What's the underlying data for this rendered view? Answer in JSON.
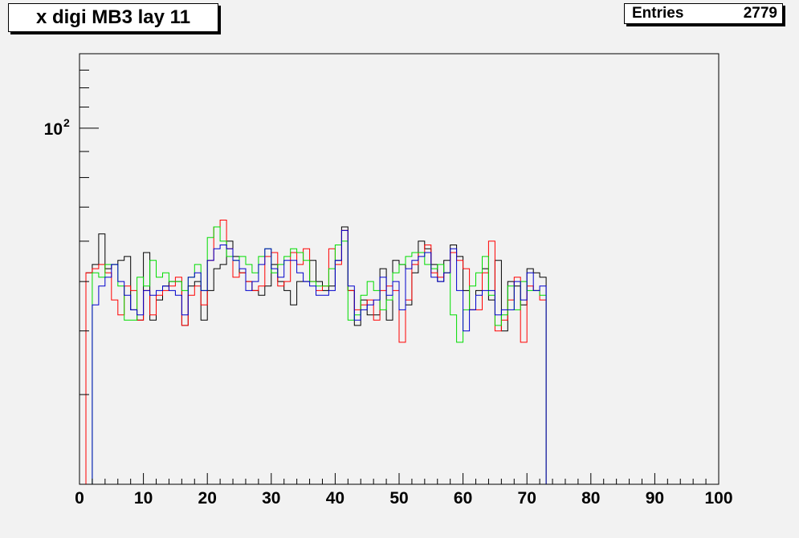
{
  "title": "x digi MB3 lay 11",
  "stats": {
    "label": "Entries",
    "value": "2779"
  },
  "chart_data": {
    "type": "histogram",
    "xlim": [
      0,
      100
    ],
    "ylim": [
      20,
      140
    ],
    "yscale": "log",
    "x_ticks": [
      "0",
      "10",
      "20",
      "30",
      "40",
      "50",
      "60",
      "70",
      "80",
      "90",
      "100"
    ],
    "y_tick_label": {
      "base": "10",
      "exponent": "2",
      "value": 100
    },
    "bin_width": 1,
    "x_start": 1,
    "grid": false,
    "series": [
      {
        "color": "#000000",
        "values": [
          52,
          54,
          62,
          53,
          54,
          55,
          56,
          44,
          42,
          57,
          42,
          46,
          49,
          50,
          50,
          41,
          49,
          50,
          42,
          48,
          53,
          54,
          60,
          56,
          52,
          50,
          48,
          47,
          49,
          54,
          50,
          48,
          45,
          50,
          50,
          55,
          50,
          48,
          49,
          55,
          64,
          48,
          41,
          46,
          43,
          43,
          53,
          42,
          55,
          54,
          45,
          52,
          60,
          58,
          54,
          50,
          55,
          59,
          56,
          48,
          44,
          48,
          53,
          46,
          55,
          40,
          50,
          49,
          45,
          53,
          52,
          51
        ]
      },
      {
        "color": "#ff0000",
        "values": [
          52,
          53,
          54,
          52,
          46,
          43,
          49,
          48,
          42,
          48,
          43,
          47,
          48,
          49,
          51,
          41,
          47,
          49,
          45,
          55,
          64,
          66,
          58,
          51,
          52,
          50,
          48,
          49,
          56,
          57,
          49,
          50,
          57,
          54,
          58,
          50,
          48,
          49,
          58,
          54,
          63,
          48,
          44,
          45,
          46,
          42,
          48,
          49,
          48,
          38,
          46,
          54,
          57,
          59,
          52,
          51,
          52,
          57,
          55,
          53,
          44,
          44,
          52,
          60,
          40,
          42,
          46,
          51,
          38,
          49,
          48,
          46
        ]
      },
      {
        "color": "#00dd00",
        "values": [
          20,
          52,
          51,
          54,
          54,
          49,
          42,
          42,
          51,
          49,
          55,
          51,
          52,
          50,
          50,
          48,
          51,
          54,
          48,
          61,
          64,
          60,
          56,
          55,
          56,
          54,
          52,
          56,
          58,
          52,
          54,
          56,
          58,
          57,
          55,
          50,
          49,
          49,
          53,
          59,
          60,
          42,
          43,
          47,
          50,
          48,
          44,
          46,
          52,
          54,
          56,
          57,
          57,
          54,
          53,
          54,
          52,
          43,
          38,
          44,
          49,
          52,
          56,
          47,
          41,
          43,
          49,
          44,
          50,
          48,
          48,
          47
        ]
      },
      {
        "color": "#0000cc",
        "values": [
          20,
          45,
          49,
          51,
          54,
          50,
          47,
          44,
          43,
          48,
          47,
          48,
          49,
          48,
          47,
          43,
          51,
          52,
          48,
          55,
          58,
          59,
          58,
          55,
          53,
          48,
          50,
          54,
          58,
          53,
          51,
          55,
          55,
          52,
          50,
          49,
          47,
          47,
          48,
          55,
          63,
          49,
          42,
          44,
          45,
          46,
          51,
          47,
          50,
          44,
          53,
          55,
          56,
          57,
          51,
          50,
          52,
          58,
          48,
          40,
          44,
          47,
          48,
          48,
          43,
          44,
          44,
          50,
          46,
          52,
          48,
          49
        ]
      }
    ]
  }
}
